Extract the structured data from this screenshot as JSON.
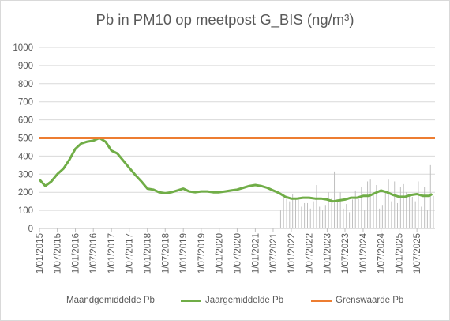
{
  "chart_data": {
    "type": "line",
    "title": "Pb in PM10 op meetpost G_BIS (ng/m³)",
    "ylim": [
      0,
      1000
    ],
    "yticks": [
      0,
      100,
      200,
      300,
      400,
      500,
      600,
      700,
      800,
      900,
      1000
    ],
    "x_range": [
      "2015-01-01",
      "2025-12-31"
    ],
    "xtick_labels": [
      "1/01/2015",
      "1/07/2015",
      "1/01/2016",
      "1/07/2016",
      "1/01/2017",
      "1/07/2017",
      "1/01/2018",
      "1/07/2018",
      "1/01/2019",
      "1/07/2019",
      "1/01/2020",
      "1/07/2020",
      "1/01/2021",
      "1/07/2021",
      "1/01/2022",
      "1/07/2022",
      "1/01/2023",
      "1/07/2023",
      "1/01/2024",
      "1/07/2024",
      "1/01/2025",
      "1/07/2025"
    ],
    "grid": "horizontal",
    "legend": "bottom",
    "series": [
      {
        "name": "Maandgemiddelde Pb",
        "kind": "bar",
        "color": "#bfbfbf",
        "x": [
          "2021-09",
          "2021-10",
          "2021-11",
          "2021-12",
          "2022-01",
          "2022-02",
          "2022-03",
          "2022-04",
          "2022-05",
          "2022-06",
          "2022-07",
          "2022-08",
          "2022-09",
          "2022-10",
          "2022-11",
          "2022-12",
          "2023-01",
          "2023-02",
          "2023-03",
          "2023-04",
          "2023-05",
          "2023-06",
          "2023-07",
          "2023-08",
          "2023-09",
          "2023-10",
          "2023-11",
          "2023-12",
          "2024-01",
          "2024-02",
          "2024-03",
          "2024-04",
          "2024-05",
          "2024-06",
          "2024-07",
          "2024-08",
          "2024-09",
          "2024-10",
          "2024-11",
          "2024-12",
          "2025-01",
          "2025-02",
          "2025-03",
          "2025-04",
          "2025-05",
          "2025-06",
          "2025-07",
          "2025-08",
          "2025-09",
          "2025-10",
          "2025-11",
          "2025-12"
        ],
        "values": [
          100,
          170,
          180,
          150,
          190,
          160,
          170,
          120,
          140,
          140,
          110,
          150,
          240,
          120,
          100,
          130,
          200,
          165,
          315,
          160,
          200,
          110,
          135,
          90,
          160,
          210,
          175,
          230,
          100,
          260,
          270,
          200,
          240,
          110,
          130,
          210,
          270,
          150,
          260,
          140,
          230,
          245,
          200,
          190,
          175,
          150,
          260,
          120,
          230,
          100,
          350,
          180
        ]
      },
      {
        "name": "Jaargemiddelde Pb",
        "kind": "line",
        "color": "#70ad47",
        "x": [
          "2015-01",
          "2015-03",
          "2015-05",
          "2015-07",
          "2015-09",
          "2015-11",
          "2016-01",
          "2016-03",
          "2016-05",
          "2016-07",
          "2016-09",
          "2016-11",
          "2017-01",
          "2017-03",
          "2017-05",
          "2017-07",
          "2017-09",
          "2017-11",
          "2018-01",
          "2018-03",
          "2018-05",
          "2018-07",
          "2018-09",
          "2018-11",
          "2019-01",
          "2019-03",
          "2019-05",
          "2019-07",
          "2019-09",
          "2019-11",
          "2020-01",
          "2020-03",
          "2020-05",
          "2020-07",
          "2020-09",
          "2020-11",
          "2021-01",
          "2021-03",
          "2021-05",
          "2021-07",
          "2021-09",
          "2021-11",
          "2022-01",
          "2022-03",
          "2022-05",
          "2022-07",
          "2022-09",
          "2022-11",
          "2023-01",
          "2023-03",
          "2023-05",
          "2023-07",
          "2023-09",
          "2023-11",
          "2024-01",
          "2024-03",
          "2024-05",
          "2024-07",
          "2024-09",
          "2024-11",
          "2025-01",
          "2025-03",
          "2025-05",
          "2025-07",
          "2025-09",
          "2025-11",
          "2025-12"
        ],
        "values": [
          270,
          235,
          260,
          300,
          330,
          380,
          440,
          470,
          480,
          485,
          500,
          480,
          430,
          415,
          375,
          335,
          295,
          260,
          220,
          215,
          200,
          195,
          200,
          210,
          220,
          205,
          200,
          205,
          205,
          200,
          200,
          205,
          210,
          215,
          225,
          235,
          240,
          235,
          225,
          210,
          195,
          175,
          165,
          165,
          170,
          170,
          165,
          165,
          160,
          150,
          155,
          160,
          170,
          170,
          180,
          180,
          195,
          210,
          200,
          185,
          175,
          175,
          185,
          190,
          180,
          180,
          190
        ]
      },
      {
        "name": "Grenswaarde Pb",
        "kind": "line",
        "color": "#ed7d31",
        "x": [
          "2015-01",
          "2025-12"
        ],
        "values": [
          500,
          500
        ]
      }
    ]
  }
}
